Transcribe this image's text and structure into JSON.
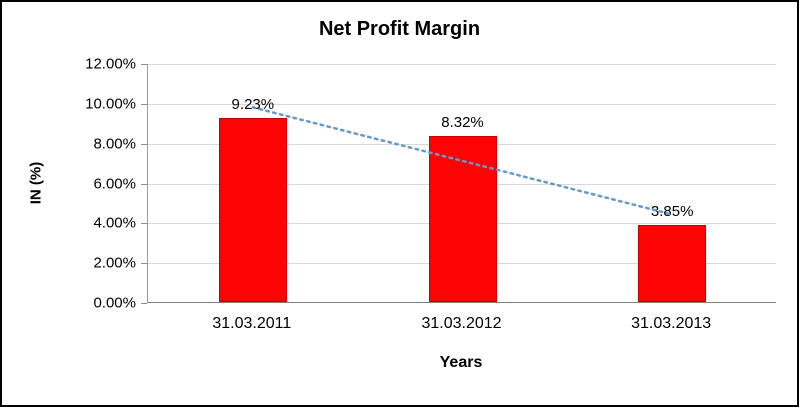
{
  "chart_data": {
    "type": "bar",
    "title": "Net Profit Margin",
    "xlabel": "Years",
    "ylabel": "IN (%)",
    "categories": [
      "31.03.2011",
      "31.03.2012",
      "31.03.2013"
    ],
    "values": [
      9.23,
      8.32,
      3.85
    ],
    "data_labels": [
      "9.23%",
      "8.32%",
      "3.85%"
    ],
    "ylim": [
      0,
      12
    ],
    "ytick_step": 2,
    "ytick_labels": [
      "0.00%",
      "2.00%",
      "4.00%",
      "6.00%",
      "8.00%",
      "10.00%",
      "12.00%"
    ],
    "grid": true,
    "legend": "none",
    "bar_color": "#fd0303",
    "trendline": {
      "type": "linear",
      "style": "dotted",
      "color": "#6699cc"
    }
  }
}
